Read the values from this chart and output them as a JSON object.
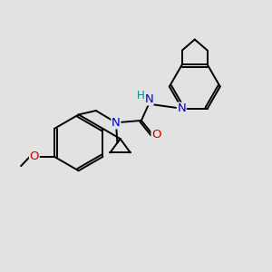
{
  "background_color": "#e2e2e2",
  "bond_color": "#000000",
  "bond_width": 1.4,
  "atom_colors": {
    "N": "#0000cc",
    "O": "#cc0000",
    "H": "#008888",
    "C": "#000000"
  },
  "font_size": 8.5,
  "fig_size": [
    3.0,
    3.0
  ],
  "dpi": 100
}
